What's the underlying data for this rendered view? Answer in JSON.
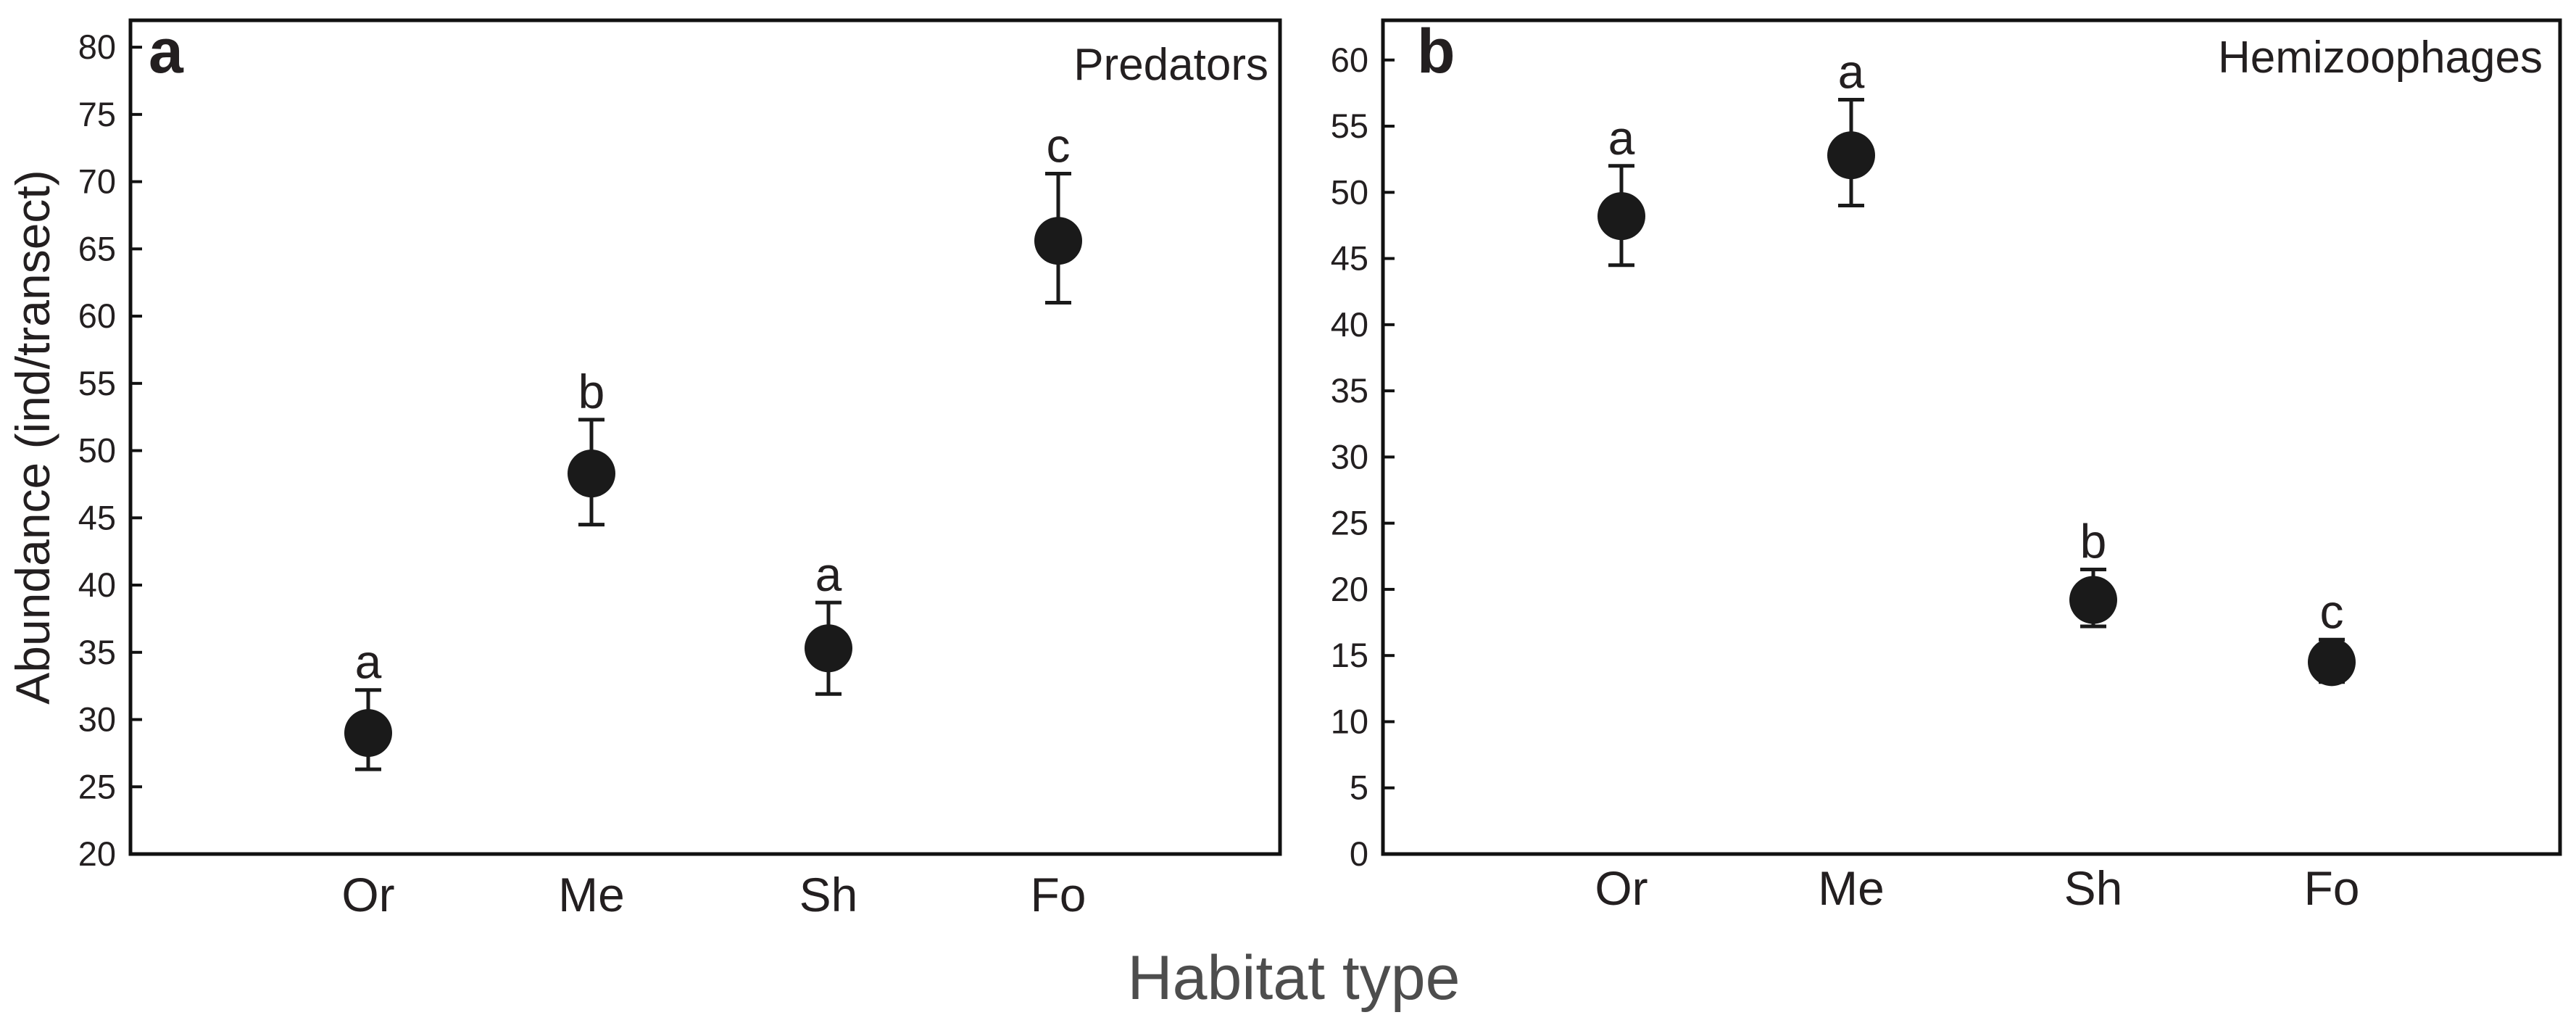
{
  "figure": {
    "shared_xlabel": "Habitat type"
  },
  "colors": {
    "marker": "#1a1a1a",
    "axis": "#111111",
    "text": "#231f20",
    "xlabel": "#4d4d4d"
  },
  "chart_data": [
    {
      "type": "scatter",
      "panel_label": "a",
      "title": "Predators",
      "ylabel": "Abundance (ind/transect)",
      "xlabel": "",
      "categories": [
        "Or",
        "Me",
        "Sh",
        "Fo"
      ],
      "ylim": [
        20,
        82
      ],
      "yticks": [
        20,
        25,
        30,
        35,
        40,
        45,
        50,
        55,
        60,
        65,
        70,
        75,
        80
      ],
      "series": [
        {
          "name": "Predators",
          "values": [
            29.0,
            48.3,
            35.3,
            65.6
          ],
          "error_upper": [
            32.2,
            52.3,
            38.7,
            70.6
          ],
          "error_lower": [
            26.3,
            44.5,
            31.9,
            61.0
          ],
          "significance": [
            "a",
            "b",
            "a",
            "c"
          ]
        }
      ]
    },
    {
      "type": "scatter",
      "panel_label": "b",
      "title": "Hemizoophages",
      "ylabel": "",
      "xlabel": "",
      "categories": [
        "Or",
        "Me",
        "Sh",
        "Fo"
      ],
      "ylim": [
        0,
        63
      ],
      "yticks": [
        0,
        5,
        10,
        15,
        20,
        25,
        30,
        35,
        40,
        45,
        50,
        55,
        60
      ],
      "series": [
        {
          "name": "Hemizoophages",
          "values": [
            48.2,
            52.8,
            19.2,
            14.5
          ],
          "error_upper": [
            52.0,
            57.0,
            21.5,
            16.2
          ],
          "error_lower": [
            44.5,
            49.0,
            17.2,
            13.0
          ],
          "significance": [
            "a",
            "a",
            "b",
            "c"
          ]
        }
      ]
    }
  ]
}
